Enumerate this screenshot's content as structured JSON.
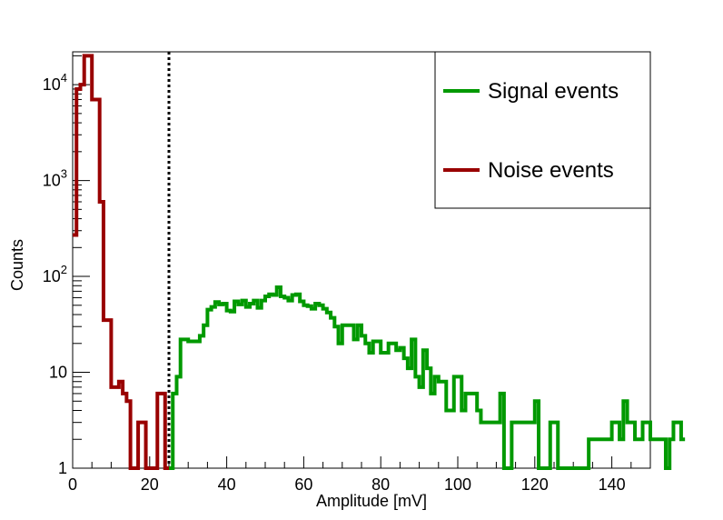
{
  "chart_data": {
    "type": "histogram",
    "xlabel": "Amplitude [mV]",
    "ylabel": "Counts",
    "xlim": [
      0,
      150
    ],
    "yscale": "log",
    "ylim": [
      1,
      22000
    ],
    "x_ticks": [
      0,
      20,
      40,
      60,
      80,
      100,
      120,
      140
    ],
    "y_ticks": [
      {
        "value": 1,
        "label": "1"
      },
      {
        "value": 10,
        "label": "10"
      },
      {
        "value": 100,
        "base": "10",
        "exp": "2"
      },
      {
        "value": 1000,
        "base": "10",
        "exp": "3"
      },
      {
        "value": 10000,
        "base": "10",
        "exp": "4"
      }
    ],
    "threshold": {
      "x": 25,
      "style": "dotted"
    },
    "bin_width": 1,
    "series": [
      {
        "name": "Signal events",
        "color": "#009900",
        "x_start": 25,
        "values": [
          1,
          6,
          9,
          22,
          22,
          21,
          21,
          21,
          24,
          31,
          45,
          48,
          54,
          51,
          52,
          44,
          43,
          55,
          51,
          56,
          48,
          52,
          56,
          47,
          56,
          62,
          65,
          64,
          77,
          62,
          60,
          56,
          64,
          65,
          55,
          50,
          49,
          46,
          52,
          50,
          46,
          42,
          37,
          30,
          20,
          31,
          31,
          31,
          22,
          31,
          24,
          20,
          16,
          21,
          21,
          16,
          16,
          20,
          20,
          17,
          18,
          14,
          11,
          22,
          9,
          7,
          17,
          11,
          6,
          9,
          8,
          8,
          4,
          4,
          9,
          9,
          4,
          6,
          6,
          6,
          4,
          3,
          3,
          3,
          3,
          3,
          6,
          1,
          1,
          3,
          3,
          3,
          3,
          3,
          3,
          5,
          1,
          1,
          1,
          3,
          3,
          1,
          1,
          1,
          1,
          1,
          1,
          1,
          1,
          2,
          2,
          2,
          2,
          2,
          2,
          3,
          3,
          2,
          5,
          3,
          3,
          2,
          2,
          3,
          3,
          2,
          2,
          2,
          2,
          1,
          2,
          3,
          3,
          2
        ]
      },
      {
        "name": "Noise events",
        "color": "#990000",
        "x_start": 0,
        "values": [
          270,
          9000,
          10000,
          20000,
          20000,
          7000,
          7000,
          600,
          35,
          35,
          7,
          7,
          8,
          6,
          5,
          1,
          1,
          3,
          3,
          1,
          1,
          1,
          6,
          6,
          1
        ]
      }
    ],
    "legend": {
      "position": "top-right"
    }
  }
}
